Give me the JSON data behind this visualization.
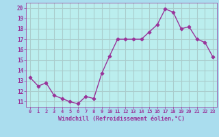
{
  "x": [
    0,
    1,
    2,
    3,
    4,
    5,
    6,
    7,
    8,
    9,
    10,
    11,
    12,
    13,
    14,
    15,
    16,
    17,
    18,
    19,
    20,
    21,
    22,
    23
  ],
  "y": [
    13.3,
    12.5,
    12.8,
    11.6,
    11.3,
    11.0,
    10.8,
    11.5,
    11.3,
    13.7,
    15.4,
    17.0,
    17.0,
    17.0,
    17.0,
    17.7,
    18.4,
    19.9,
    19.6,
    18.0,
    18.2,
    17.0,
    16.7,
    15.3
  ],
  "line_color": "#993399",
  "marker": "+",
  "bg_color": "#aaddee",
  "plot_bg_color": "#bbeeee",
  "grid_color": "#aacccc",
  "xlabel": "Windchill (Refroidissement éolien,°C)",
  "xlabel_color": "#993399",
  "tick_color": "#993399",
  "label_color": "#993399",
  "ylim": [
    10.5,
    20.5
  ],
  "xlim": [
    -0.5,
    23.5
  ],
  "yticks": [
    11,
    12,
    13,
    14,
    15,
    16,
    17,
    18,
    19,
    20
  ],
  "xticks": [
    0,
    1,
    2,
    3,
    4,
    5,
    6,
    7,
    8,
    9,
    10,
    11,
    12,
    13,
    14,
    15,
    16,
    17,
    18,
    19,
    20,
    21,
    22,
    23
  ],
  "xtick_labels": [
    "0",
    "1",
    "2",
    "3",
    "4",
    "5",
    "6",
    "7",
    "8",
    "9",
    "10",
    "11",
    "12",
    "13",
    "14",
    "15",
    "16",
    "17",
    "18",
    "19",
    "20",
    "21",
    "22",
    "23"
  ]
}
